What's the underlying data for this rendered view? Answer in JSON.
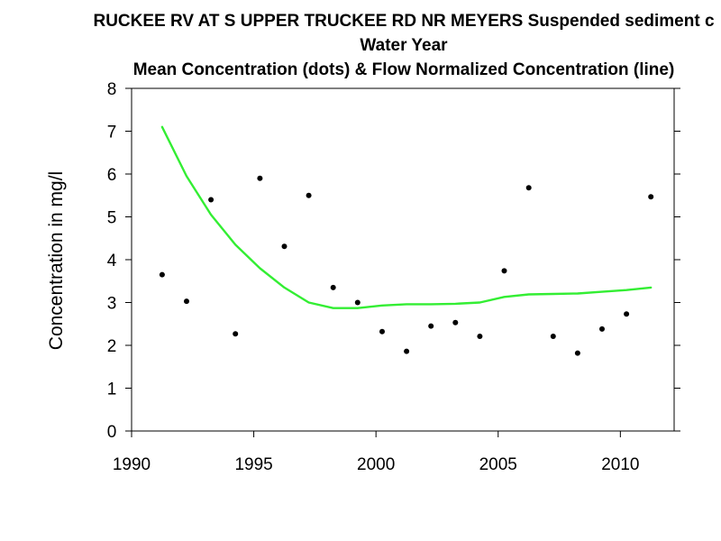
{
  "chart_data": {
    "type": "scatter",
    "title": "RUCKEE RV AT S UPPER TRUCKEE RD NR MEYERS   Suspended sediment c",
    "subtitle": "Water Year",
    "subtitle2": "Mean Concentration (dots) & Flow Normalized Concentration (line)",
    "xlabel": "",
    "ylabel": "Concentration in mg/l",
    "xlim": [
      1990,
      2012.2
    ],
    "ylim": [
      0,
      8
    ],
    "x_ticks": [
      "1990",
      "1995",
      "2000",
      "2005",
      "2010"
    ],
    "y_ticks": [
      "0",
      "1",
      "2",
      "3",
      "4",
      "5",
      "6",
      "7",
      "8"
    ],
    "grid": false,
    "colors": {
      "points": "#000000",
      "line": "#33ee33",
      "axis": "#000000"
    },
    "series": [
      {
        "kind": "points",
        "x": [
          1991.25,
          1992.25,
          1993.25,
          1994.25,
          1995.25,
          1996.25,
          1997.25,
          1998.25,
          1999.25,
          2000.25,
          2001.25,
          2002.25,
          2003.25,
          2004.25,
          2005.25,
          2006.25,
          2007.25,
          2008.25,
          2009.25,
          2010.25,
          2011.25
        ],
        "y": [
          3.65,
          3.03,
          5.4,
          2.27,
          5.9,
          4.31,
          5.5,
          3.35,
          3.0,
          2.32,
          1.86,
          2.45,
          2.53,
          2.21,
          3.74,
          5.68,
          2.21,
          1.82,
          2.38,
          2.73,
          5.47
        ]
      },
      {
        "kind": "line",
        "x": [
          1991.25,
          1992.25,
          1993.25,
          1994.25,
          1995.25,
          1996.25,
          1997.25,
          1998.25,
          1999.25,
          2000.25,
          2001.25,
          2002.25,
          2003.25,
          2004.25,
          2005.25,
          2006.25,
          2007.25,
          2008.25,
          2009.25,
          2010.25,
          2011.25
        ],
        "y": [
          7.1,
          5.95,
          5.05,
          4.35,
          3.8,
          3.35,
          3.0,
          2.87,
          2.87,
          2.93,
          2.96,
          2.96,
          2.97,
          3.0,
          3.13,
          3.19,
          3.2,
          3.21,
          3.25,
          3.29,
          3.35
        ]
      }
    ]
  }
}
